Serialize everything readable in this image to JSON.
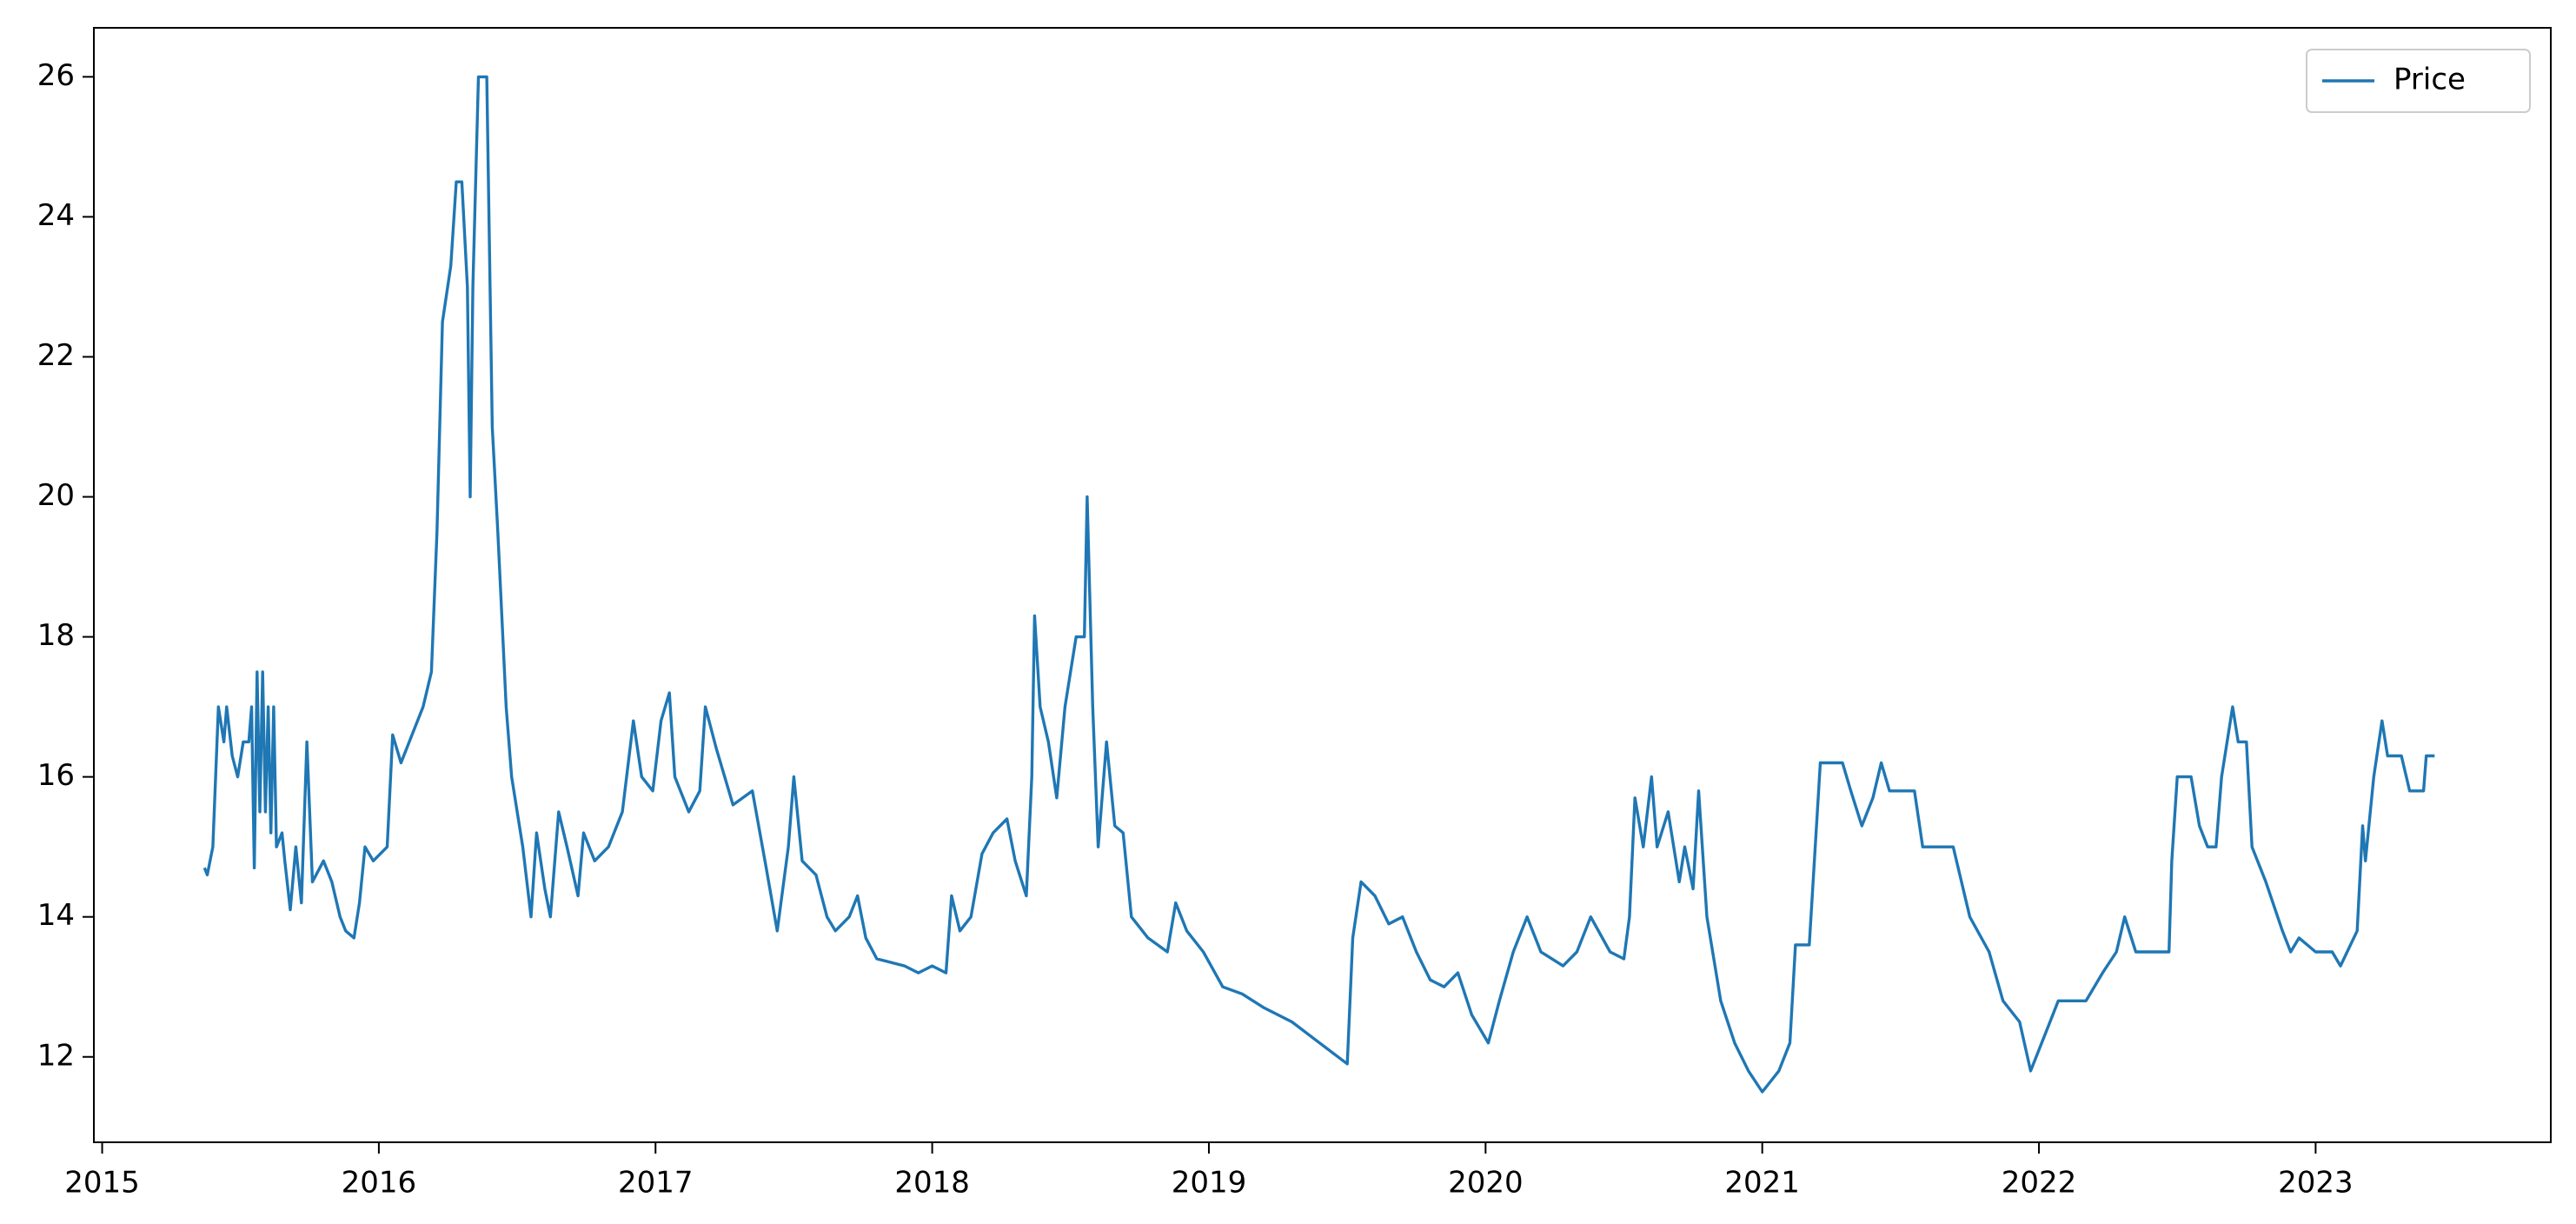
{
  "chart_data": {
    "type": "line",
    "x": [
      2015.37,
      2015.38,
      2015.4,
      2015.41,
      2015.42,
      2015.44,
      2015.45,
      2015.47,
      2015.49,
      2015.51,
      2015.53,
      2015.54,
      2015.55,
      2015.56,
      2015.57,
      2015.58,
      2015.59,
      2015.6,
      2015.61,
      2015.62,
      2015.63,
      2015.65,
      2015.66,
      2015.68,
      2015.7,
      2015.72,
      2015.74,
      2015.76,
      2015.8,
      2015.83,
      2015.86,
      2015.88,
      2015.91,
      2015.93,
      2015.95,
      2015.98,
      2016.03,
      2016.05,
      2016.08,
      2016.12,
      2016.16,
      2016.19,
      2016.21,
      2016.23,
      2016.26,
      2016.28,
      2016.3,
      2016.32,
      2016.33,
      2016.34,
      2016.36,
      2016.39,
      2016.41,
      2016.43,
      2016.46,
      2016.48,
      2016.52,
      2016.55,
      2016.57,
      2016.6,
      2016.62,
      2016.65,
      2016.68,
      2016.72,
      2016.74,
      2016.78,
      2016.83,
      2016.88,
      2016.92,
      2016.95,
      2016.99,
      2017.02,
      2017.05,
      2017.07,
      2017.12,
      2017.16,
      2017.18,
      2017.22,
      2017.28,
      2017.35,
      2017.4,
      2017.44,
      2017.48,
      2017.5,
      2017.53,
      2017.58,
      2017.62,
      2017.65,
      2017.7,
      2017.73,
      2017.76,
      2017.8,
      2017.9,
      2017.95,
      2018.0,
      2018.05,
      2018.07,
      2018.1,
      2018.14,
      2018.18,
      2018.22,
      2018.27,
      2018.3,
      2018.34,
      2018.36,
      2018.37,
      2018.39,
      2018.42,
      2018.45,
      2018.48,
      2018.52,
      2018.55,
      2018.56,
      2018.58,
      2018.6,
      2018.63,
      2018.66,
      2018.69,
      2018.72,
      2018.78,
      2018.85,
      2018.88,
      2018.92,
      2018.98,
      2019.05,
      2019.12,
      2019.2,
      2019.3,
      2019.4,
      2019.5,
      2019.52,
      2019.55,
      2019.6,
      2019.65,
      2019.7,
      2019.75,
      2019.8,
      2019.85,
      2019.9,
      2019.95,
      2020.01,
      2020.05,
      2020.1,
      2020.15,
      2020.2,
      2020.28,
      2020.33,
      2020.38,
      2020.45,
      2020.5,
      2020.52,
      2020.54,
      2020.57,
      2020.6,
      2020.62,
      2020.66,
      2020.7,
      2020.72,
      2020.75,
      2020.77,
      2020.8,
      2020.85,
      2020.9,
      2020.95,
      2021.0,
      2021.02,
      2021.06,
      2021.1,
      2021.12,
      2021.17,
      2021.21,
      2021.29,
      2021.32,
      2021.36,
      2021.4,
      2021.43,
      2021.46,
      2021.55,
      2021.58,
      2021.69,
      2021.75,
      2021.82,
      2021.87,
      2021.93,
      2021.97,
      2022.04,
      2022.07,
      2022.17,
      2022.23,
      2022.28,
      2022.31,
      2022.35,
      2022.47,
      2022.48,
      2022.5,
      2022.55,
      2022.58,
      2022.61,
      2022.64,
      2022.66,
      2022.7,
      2022.72,
      2022.75,
      2022.77,
      2022.82,
      2022.88,
      2022.91,
      2022.94,
      2023.0,
      2023.06,
      2023.09,
      2023.15,
      2023.17,
      2023.18,
      2023.21,
      2023.24,
      2023.26,
      2023.31,
      2023.34,
      2023.39,
      2023.4,
      2023.43
    ],
    "series": [
      {
        "name": "Price",
        "color": "#1f77b4",
        "values": [
          14.7,
          14.6,
          15.0,
          16.0,
          17.0,
          16.5,
          17.0,
          16.3,
          16.0,
          16.5,
          16.5,
          17.0,
          14.7,
          17.5,
          15.5,
          17.5,
          15.5,
          17.0,
          15.2,
          17.0,
          15.0,
          15.2,
          14.8,
          14.1,
          15.0,
          14.2,
          16.5,
          14.5,
          14.8,
          14.5,
          14.0,
          13.8,
          13.7,
          14.2,
          15.0,
          14.8,
          15.0,
          16.6,
          16.2,
          16.6,
          17.0,
          17.5,
          19.5,
          22.5,
          23.3,
          24.5,
          24.5,
          23.0,
          20.0,
          23.0,
          26.0,
          26.0,
          21.0,
          19.5,
          17.0,
          16.0,
          15.0,
          14.0,
          15.2,
          14.4,
          14.0,
          15.5,
          15.0,
          14.3,
          15.2,
          14.8,
          15.0,
          15.5,
          16.8,
          16.0,
          15.8,
          16.8,
          17.2,
          16.0,
          15.5,
          15.8,
          17.0,
          16.4,
          15.6,
          15.8,
          14.7,
          13.8,
          15.0,
          16.0,
          14.8,
          14.6,
          14.0,
          13.8,
          14.0,
          14.3,
          13.7,
          13.4,
          13.3,
          13.2,
          13.3,
          13.2,
          14.3,
          13.8,
          14.0,
          14.9,
          15.2,
          15.4,
          14.8,
          14.3,
          16.0,
          18.3,
          17.0,
          16.5,
          15.7,
          17.0,
          18.0,
          18.0,
          20.0,
          17.0,
          15.0,
          16.5,
          15.3,
          15.2,
          14.0,
          13.7,
          13.5,
          14.2,
          13.8,
          13.5,
          13.0,
          12.9,
          12.7,
          12.5,
          12.2,
          11.9,
          13.7,
          14.5,
          14.3,
          13.9,
          14.0,
          13.5,
          13.1,
          13.0,
          13.2,
          12.6,
          12.2,
          12.8,
          13.5,
          14.0,
          13.5,
          13.3,
          13.5,
          14.0,
          13.5,
          13.4,
          14.0,
          15.7,
          15.0,
          16.0,
          15.0,
          15.5,
          14.5,
          15.0,
          14.4,
          15.8,
          14.0,
          12.8,
          12.2,
          11.8,
          11.5,
          11.6,
          11.8,
          12.2,
          13.6,
          13.6,
          16.2,
          16.2,
          15.8,
          15.3,
          15.7,
          16.2,
          15.8,
          15.8,
          15.0,
          15.0,
          14.0,
          13.5,
          12.8,
          12.5,
          11.8,
          12.5,
          12.8,
          12.8,
          13.2,
          13.5,
          14.0,
          13.5,
          13.5,
          14.8,
          16.0,
          16.0,
          15.3,
          15.0,
          15.0,
          16.0,
          17.0,
          16.5,
          16.5,
          15.0,
          14.5,
          13.8,
          13.5,
          13.7,
          13.5,
          13.5,
          13.3,
          13.8,
          15.3,
          14.8,
          16.0,
          16.8,
          16.3,
          16.3,
          15.8,
          15.8,
          16.3,
          16.3
        ]
      }
    ],
    "xlim": [
      2014.97,
      2023.85
    ],
    "xticks": [
      2015,
      2016,
      2017,
      2018,
      2019,
      2020,
      2021,
      2022,
      2023
    ],
    "ylim": [
      10.78,
      26.7
    ],
    "yticks": [
      12,
      14,
      16,
      18,
      20,
      22,
      24,
      26
    ],
    "legend": "upper right"
  }
}
